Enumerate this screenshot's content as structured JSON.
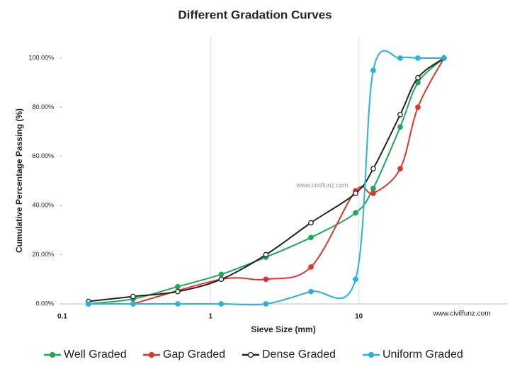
{
  "chart_data": {
    "type": "line",
    "title": "Different Gradation Curves",
    "x_label": "Sieve  Size (mm)",
    "y_label": "Cumulative Percentage Passing  (%)",
    "annotations": [
      "www.civilfunz.com",
      "www.civilfunz.com"
    ],
    "x": [
      0.15,
      0.3,
      0.6,
      1.18,
      2.36,
      4.75,
      9.5,
      12.5,
      19,
      25,
      37.5
    ],
    "xscale": "log",
    "xlim": [
      0.1,
      100
    ],
    "xticks": [
      0.1,
      1,
      10
    ],
    "xgrid": true,
    "ylim": [
      0,
      100
    ],
    "yticks": [
      {
        "value": 0,
        "label": "0.00%"
      },
      {
        "value": 20,
        "label": "20.00%"
      },
      {
        "value": 40,
        "label": "40.00%"
      },
      {
        "value": 60,
        "label": "60.00%"
      },
      {
        "value": 80,
        "label": "80.00%"
      },
      {
        "value": 100,
        "label": "100.00%"
      }
    ],
    "legend": "bottom",
    "series": [
      {
        "name": "Well Graded",
        "color": "#1ba95a",
        "values": [
          0,
          2,
          7,
          12,
          19,
          27,
          37,
          47,
          72,
          90,
          100
        ]
      },
      {
        "name": "Gap Graded",
        "color": "#e5312b",
        "values": [
          null,
          0,
          null,
          10,
          10,
          15,
          46,
          45,
          55,
          80,
          100
        ]
      },
      {
        "name": "Dense Graded",
        "color": "#222222",
        "marker": "open",
        "values": [
          1,
          3,
          5,
          10,
          20,
          33,
          45,
          55,
          77,
          92,
          100
        ]
      },
      {
        "name": "Uniform Graded",
        "color": "#27b3df",
        "values": [
          0,
          0,
          0,
          0,
          0,
          5,
          10,
          95,
          100,
          100,
          100
        ]
      }
    ]
  }
}
